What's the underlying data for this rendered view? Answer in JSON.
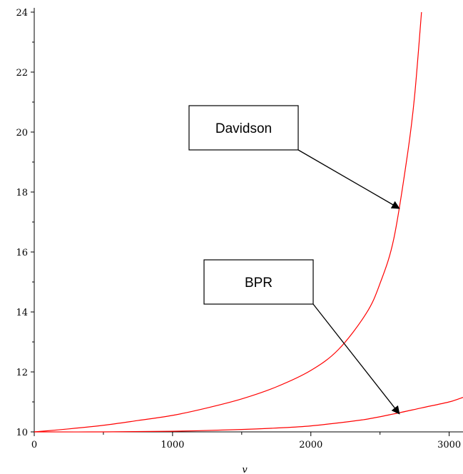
{
  "chart_data": {
    "type": "line",
    "title": "",
    "xlabel": "v",
    "ylabel": "",
    "xlim": [
      0,
      3100
    ],
    "ylim": [
      10,
      24
    ],
    "x_ticks": [
      0,
      1000,
      2000,
      3000
    ],
    "x_tick_labels": [
      "0",
      "1000",
      "2000",
      "3000"
    ],
    "y_ticks": [
      10,
      12,
      14,
      16,
      18,
      20,
      22,
      24
    ],
    "y_tick_labels": [
      "10",
      "12",
      "14",
      "16",
      "18",
      "20",
      "22",
      "24"
    ],
    "grid": false,
    "line_color": "#ff0000",
    "series": [
      {
        "name": "Davidson",
        "x": [
          0,
          250,
          500,
          750,
          1000,
          1250,
          1500,
          1750,
          2000,
          2200,
          2400,
          2500,
          2600,
          2700,
          2750,
          2800
        ],
        "y": [
          10.0,
          10.1,
          10.22,
          10.38,
          10.55,
          10.8,
          11.1,
          11.5,
          12.05,
          12.75,
          13.95,
          14.95,
          16.45,
          19.3,
          21.2,
          24.0
        ]
      },
      {
        "name": "BPR",
        "x": [
          0,
          500,
          1000,
          1500,
          1800,
          2000,
          2200,
          2400,
          2600,
          2800,
          3000,
          3100
        ],
        "y": [
          10.0,
          10.0,
          10.02,
          10.08,
          10.14,
          10.2,
          10.3,
          10.42,
          10.6,
          10.8,
          11.0,
          11.15
        ]
      }
    ],
    "annotations": [
      {
        "text": "Davidson",
        "points_to_x": 2650,
        "points_to_y": 17.5
      },
      {
        "text": "BPR",
        "points_to_x": 2650,
        "points_to_y": 10.65
      }
    ]
  }
}
